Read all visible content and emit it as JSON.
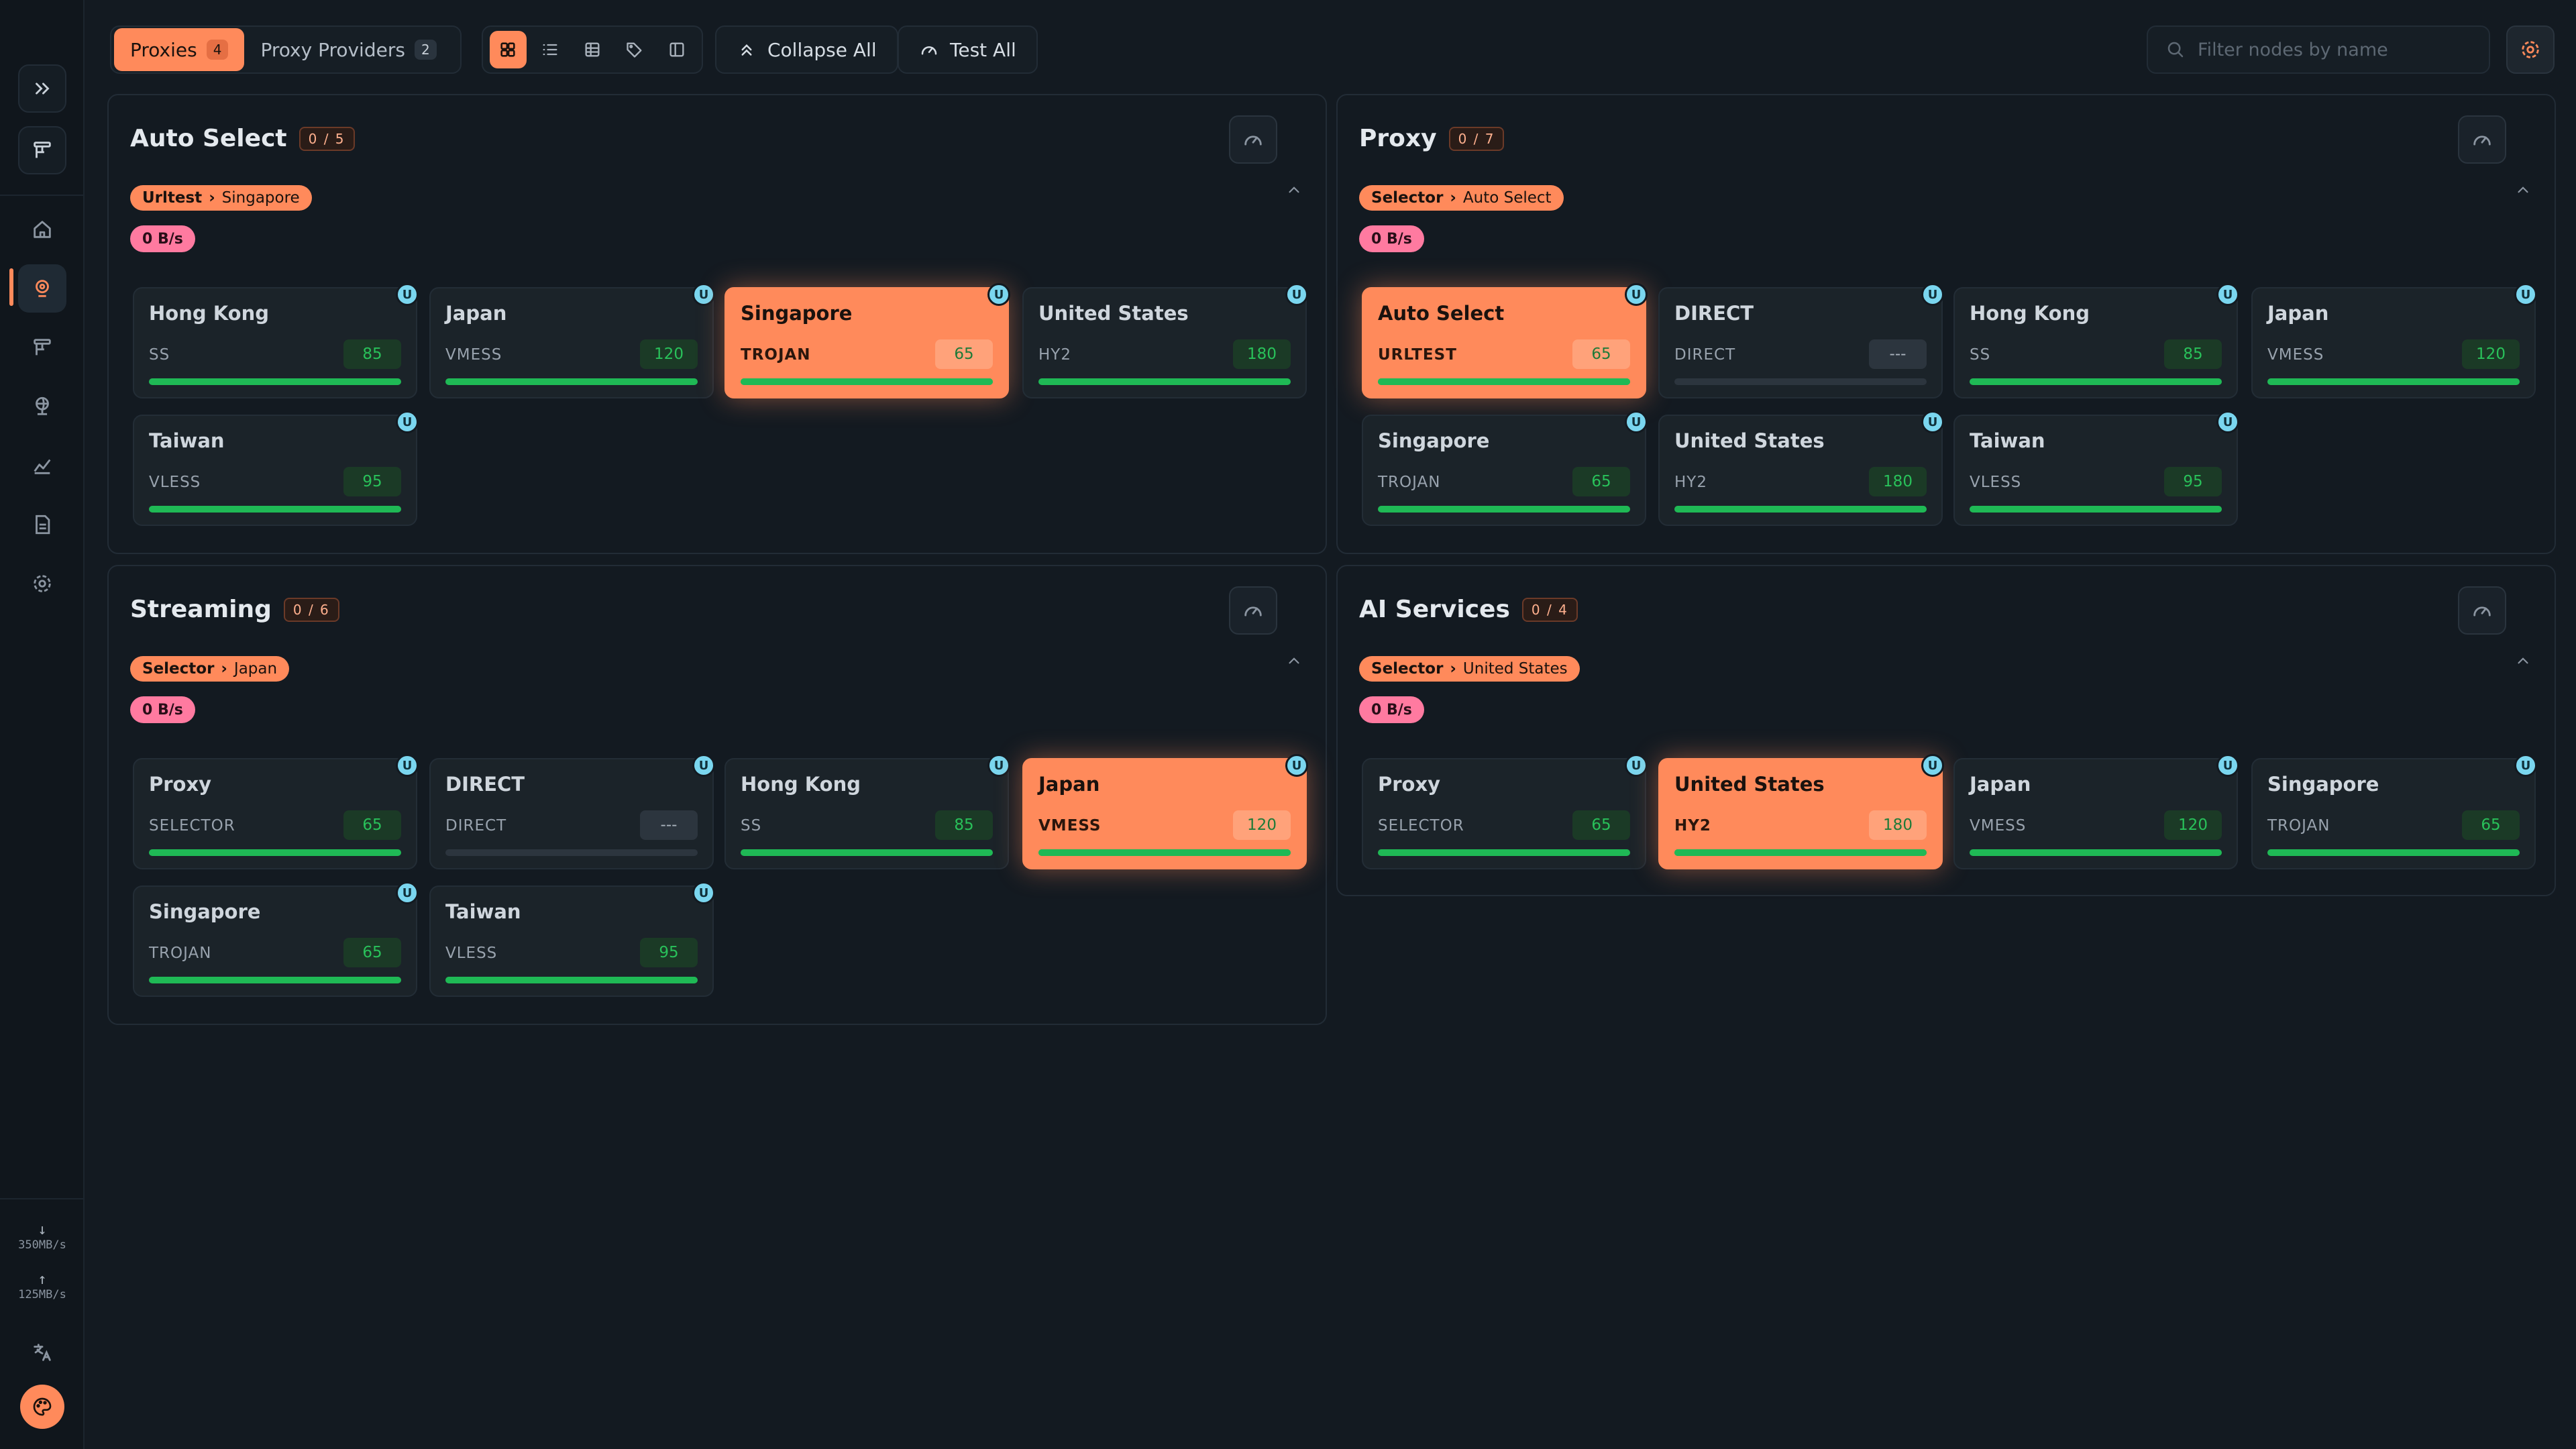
{
  "tabs": [
    {
      "label": "Proxies",
      "count": "4"
    },
    {
      "label": "Proxy Providers",
      "count": "2"
    }
  ],
  "actions": {
    "collapse_all": "Collapse All",
    "test_all": "Test All"
  },
  "search": {
    "placeholder": "Filter nodes by name"
  },
  "sidebar": {
    "download_speed": "350MB/s",
    "upload_speed": "125MB/s",
    "icons": [
      "expand-icon",
      "logo-icon",
      "home-icon",
      "proxies-icon",
      "rules-icon",
      "connections-icon",
      "traffic-icon",
      "logs-icon",
      "settings-icon",
      "language-icon",
      "palette-icon"
    ]
  },
  "colors": {
    "accent": "#ff8a5b",
    "traffic": "#ff7aa0",
    "latency_good": "#1fb955",
    "udp": "#7ad6ef"
  },
  "groups": {
    "auto": {
      "name": "Auto Select",
      "ratio": "0 / 5",
      "chain_type": "Urltest",
      "chain_target": "Singapore",
      "traffic": "0 B/s",
      "nodes": [
        {
          "name": "Hong Kong",
          "type": "SS",
          "latency": "85",
          "udp": "U",
          "selected": false
        },
        {
          "name": "Japan",
          "type": "VMESS",
          "latency": "120",
          "udp": "U",
          "selected": false
        },
        {
          "name": "Singapore",
          "type": "TROJAN",
          "latency": "65",
          "udp": "U",
          "selected": true
        },
        {
          "name": "United States",
          "type": "HY2",
          "latency": "180",
          "udp": "U",
          "selected": false
        },
        {
          "name": "Taiwan",
          "type": "VLESS",
          "latency": "95",
          "udp": "U",
          "selected": false
        }
      ]
    },
    "proxy": {
      "name": "Proxy",
      "ratio": "0 / 7",
      "chain_type": "Selector",
      "chain_target": "Auto Select",
      "traffic": "0 B/s",
      "nodes": [
        {
          "name": "Auto Select",
          "type": "URLTEST",
          "latency": "65",
          "udp": "U",
          "selected": true
        },
        {
          "name": "DIRECT",
          "type": "DIRECT",
          "latency": "---",
          "udp": "U",
          "selected": false
        },
        {
          "name": "Hong Kong",
          "type": "SS",
          "latency": "85",
          "udp": "U",
          "selected": false
        },
        {
          "name": "Japan",
          "type": "VMESS",
          "latency": "120",
          "udp": "U",
          "selected": false
        },
        {
          "name": "Singapore",
          "type": "TROJAN",
          "latency": "65",
          "udp": "U",
          "selected": false
        },
        {
          "name": "United States",
          "type": "HY2",
          "latency": "180",
          "udp": "U",
          "selected": false
        },
        {
          "name": "Taiwan",
          "type": "VLESS",
          "latency": "95",
          "udp": "U",
          "selected": false
        }
      ]
    },
    "streaming": {
      "name": "Streaming",
      "ratio": "0 / 6",
      "chain_type": "Selector",
      "chain_target": "Japan",
      "traffic": "0 B/s",
      "nodes": [
        {
          "name": "Proxy",
          "type": "SELECTOR",
          "latency": "65",
          "udp": "U",
          "selected": false
        },
        {
          "name": "DIRECT",
          "type": "DIRECT",
          "latency": "---",
          "udp": "U",
          "selected": false
        },
        {
          "name": "Hong Kong",
          "type": "SS",
          "latency": "85",
          "udp": "U",
          "selected": false
        },
        {
          "name": "Japan",
          "type": "VMESS",
          "latency": "120",
          "udp": "U",
          "selected": true
        },
        {
          "name": "Singapore",
          "type": "TROJAN",
          "latency": "65",
          "udp": "U",
          "selected": false
        },
        {
          "name": "Taiwan",
          "type": "VLESS",
          "latency": "95",
          "udp": "U",
          "selected": false
        }
      ]
    },
    "ai": {
      "name": "AI Services",
      "ratio": "0 / 4",
      "chain_type": "Selector",
      "chain_target": "United States",
      "traffic": "0 B/s",
      "nodes": [
        {
          "name": "Proxy",
          "type": "SELECTOR",
          "latency": "65",
          "udp": "U",
          "selected": false
        },
        {
          "name": "United States",
          "type": "HY2",
          "latency": "180",
          "udp": "U",
          "selected": true
        },
        {
          "name": "Japan",
          "type": "VMESS",
          "latency": "120",
          "udp": "U",
          "selected": false
        },
        {
          "name": "Singapore",
          "type": "TROJAN",
          "latency": "65",
          "udp": "U",
          "selected": false
        }
      ]
    }
  }
}
